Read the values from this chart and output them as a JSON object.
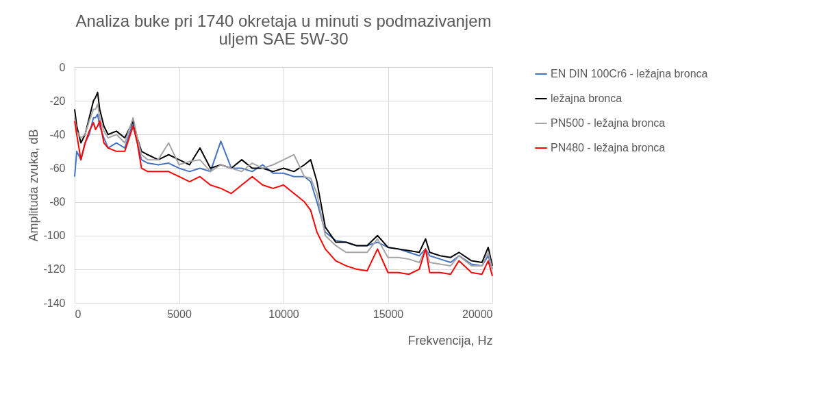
{
  "chart_data": {
    "type": "line",
    "title": "Analiza buke pri 1740 okretaja u minuti s podmazivanjem uljem SAE 5W-30",
    "xlabel": "Frekvencija, Hz",
    "ylabel": "Amplituda zvuka, dB",
    "x": [
      0,
      100,
      300,
      500,
      700,
      900,
      1000,
      1100,
      1200,
      1400,
      1600,
      2000,
      2400,
      2800,
      3000,
      3200,
      3500,
      4000,
      4500,
      5000,
      5500,
      6000,
      6500,
      7000,
      7500,
      8000,
      8500,
      9000,
      9500,
      10000,
      10500,
      11000,
      11300,
      11600,
      12000,
      12500,
      13000,
      13500,
      14000,
      14500,
      15000,
      15500,
      16000,
      16500,
      16800,
      17000,
      17500,
      18000,
      18400,
      19000,
      19500,
      19800,
      20000
    ],
    "series": [
      {
        "name": "EN DIN 100Cr6 - ležajna bronca",
        "color": "#4472c4",
        "values": [
          -65,
          -50,
          -55,
          -45,
          -40,
          -30,
          -30,
          -28,
          -35,
          -42,
          -48,
          -45,
          -48,
          -33,
          -45,
          -55,
          -57,
          -58,
          -57,
          -60,
          -62,
          -60,
          -62,
          -44,
          -60,
          -60,
          -62,
          -58,
          -63,
          -63,
          -65,
          -65,
          -68,
          -80,
          -98,
          -103,
          -104,
          -106,
          -106,
          -104,
          -107,
          -108,
          -110,
          -112,
          -108,
          -112,
          -114,
          -116,
          -112,
          -117,
          -118,
          -112,
          -120
        ]
      },
      {
        "name": "ležajna bronca",
        "color": "#000000",
        "values": [
          -25,
          -35,
          -45,
          -40,
          -30,
          -20,
          -18,
          -15,
          -25,
          -35,
          -40,
          -38,
          -42,
          -32,
          -42,
          -50,
          -52,
          -55,
          -52,
          -55,
          -58,
          -48,
          -60,
          -58,
          -60,
          -55,
          -60,
          -60,
          -62,
          -60,
          -62,
          -58,
          -55,
          -68,
          -95,
          -104,
          -104,
          -106,
          -106,
          -100,
          -107,
          -108,
          -109,
          -110,
          -102,
          -110,
          -112,
          -113,
          -110,
          -115,
          -116,
          -107,
          -118
        ]
      },
      {
        "name": "PN500 - ležajna bronca",
        "color": "#a5a5a5",
        "values": [
          -30,
          -38,
          -42,
          -40,
          -32,
          -25,
          -25,
          -22,
          -30,
          -38,
          -42,
          -40,
          -45,
          -30,
          -42,
          -52,
          -55,
          -55,
          -45,
          -58,
          -56,
          -55,
          -62,
          -58,
          -60,
          -62,
          -57,
          -60,
          -58,
          -55,
          -52,
          -65,
          -66,
          -75,
          -100,
          -106,
          -110,
          -110,
          -110,
          -102,
          -113,
          -113,
          -114,
          -116,
          -108,
          -116,
          -117,
          -118,
          -112,
          -118,
          -118,
          -110,
          -120
        ]
      },
      {
        "name": "PN480 - ležajna bronca",
        "color": "#ff0000",
        "values": [
          -32,
          -40,
          -55,
          -45,
          -38,
          -33,
          -37,
          -35,
          -32,
          -45,
          -48,
          -50,
          -50,
          -35,
          -45,
          -60,
          -62,
          -62,
          -62,
          -65,
          -68,
          -65,
          -70,
          -72,
          -75,
          -70,
          -65,
          -70,
          -72,
          -70,
          -75,
          -80,
          -85,
          -98,
          -108,
          -115,
          -118,
          -120,
          -121,
          -108,
          -122,
          -122,
          -123,
          -120,
          -108,
          -122,
          -122,
          -123,
          -115,
          -122,
          -123,
          -115,
          -124
        ]
      }
    ],
    "xlim": [
      0,
      20000
    ],
    "xticks": [
      0,
      5000,
      10000,
      15000,
      20000
    ],
    "ylim": [
      -140,
      0
    ],
    "yticks": [
      0,
      -20,
      -40,
      -60,
      -80,
      -100,
      -120,
      -140
    ],
    "grid": true,
    "legend": "right",
    "marker": "none",
    "line_style": "solid"
  }
}
